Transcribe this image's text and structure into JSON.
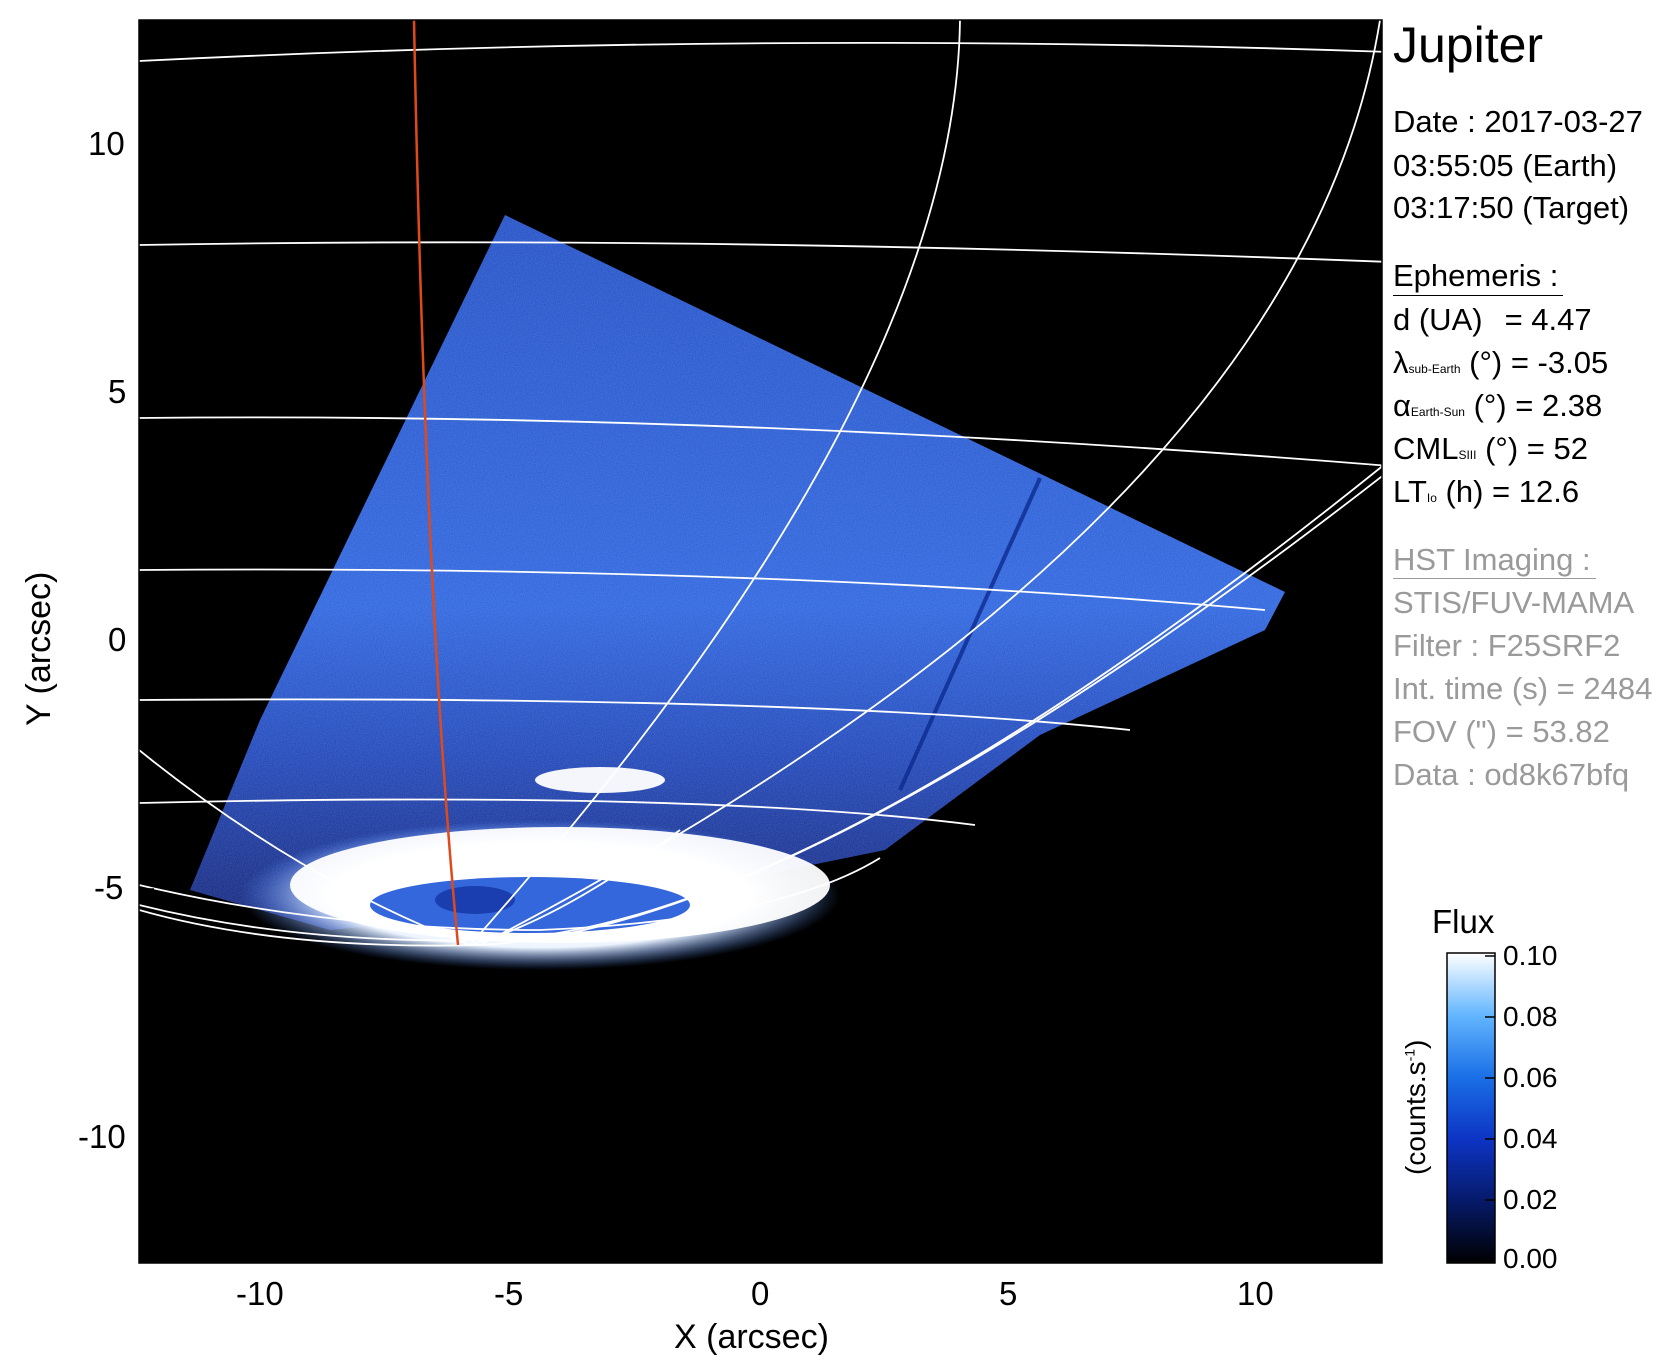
{
  "header": {
    "target": "Jupiter",
    "date_line": "Date : 2017-03-27",
    "earth_time": "03:55:05 (Earth)",
    "target_time": "03:17:50 (Target)"
  },
  "ephemeris": {
    "heading": "Ephemeris :",
    "distance": {
      "label": "d (UA)",
      "value": "= 4.47"
    },
    "sub_earth": {
      "symbol": "λ",
      "subscript": "sub-Earth",
      "rest": "(°) = -3.05"
    },
    "earth_sun": {
      "symbol": "α",
      "subscript": "Earth-Sun",
      "rest": "(°) = 2.38"
    },
    "cml": {
      "symbol": "CML",
      "subscript": "SIII",
      "rest": "(°) = 52"
    },
    "lt": {
      "symbol": "LT",
      "subscript": "Io",
      "rest": "(h) = 12.6"
    }
  },
  "hst": {
    "heading": "HST Imaging :",
    "instrument": "STIS/FUV-MAMA",
    "filter": "Filter : F25SRF2",
    "int_time": "Int. time (s) = 2484",
    "fov": "FOV (\") = 53.82",
    "data": "Data : od8k67bfq"
  },
  "axes": {
    "x_label": "X (arcsec)",
    "y_label": "Y (arcsec)",
    "x_ticks": [
      "-10",
      "-5",
      "0",
      "5",
      "10"
    ],
    "y_ticks": [
      "10",
      "5",
      "0",
      "-5",
      "-10"
    ],
    "x_range": [
      -12.5,
      12.5
    ],
    "y_range": [
      -12.5,
      12.5
    ]
  },
  "colorbar": {
    "title": "Flux",
    "unit": "(counts.s",
    "unit_sup": "-1",
    "unit_close": ")",
    "ticks": [
      "0.10",
      "0.08",
      "0.06",
      "0.04",
      "0.02",
      "0.00"
    ],
    "range": [
      0.0,
      0.1
    ]
  },
  "colors": {
    "background": "#000000",
    "emission": "#1f5fe0",
    "grid": "#ffffff",
    "meridian": "#e04a1a",
    "info_gray": "#9a9a9a"
  }
}
